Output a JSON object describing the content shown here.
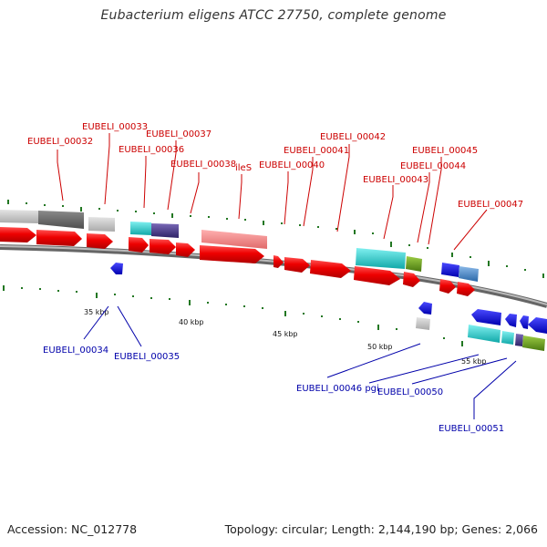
{
  "header": {
    "title": "Eubacterium eligens ATCC 27750, complete genome"
  },
  "footer": {
    "accession": "Accession: NC_012778",
    "topology": "Topology: circular; Length: 2,144,190 bp; Genes: 2,066"
  },
  "scale_labels": [
    "35 kbp",
    "40 kbp",
    "45 kbp",
    "50 kbp",
    "55 kbp"
  ],
  "upper_labels": [
    "EUBELI_00032",
    "EUBELI_00033",
    "EUBELI_00036",
    "EUBELI_00037",
    "EUBELI_00038",
    "ileS",
    "EUBELI_00040",
    "EUBELI_00041",
    "EUBELI_00042",
    "EUBELI_00043",
    "EUBELI_00044",
    "EUBELI_00045",
    "EUBELI_00047"
  ],
  "lower_labels": [
    "EUBELI_00034",
    "EUBELI_00035",
    "EUBELI_00046 pgi",
    "EUBELI_00050",
    "EUBELI_00051"
  ],
  "colors": {
    "cds": "#ee0000",
    "rna": "#f08080",
    "gray": "#999999",
    "cyan": "#22cccc",
    "purple": "#4a3a8a",
    "olive": "#6a9a20",
    "blue": "#0000ee",
    "steel": "#4a88c8",
    "tick": "#227722",
    "label_red": "#cc0000",
    "label_blue": "#0000aa"
  }
}
